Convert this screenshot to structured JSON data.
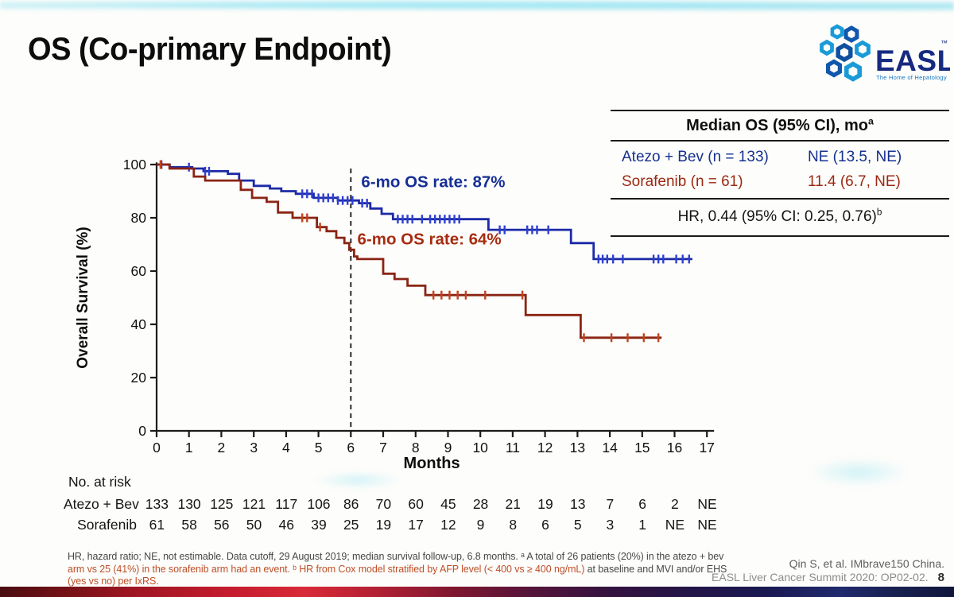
{
  "slide": {
    "title": "OS (Co-primary Endpoint)",
    "page_number": "8",
    "citation_line1": "Qin S, et al. IMbrave150 China.",
    "citation_line2": "EASL Liver Cancer Summit 2020: OP02-02."
  },
  "logo": {
    "text": "EASL",
    "tm": "™",
    "tagline": "The Home of Hepatology"
  },
  "summary_table": {
    "header": "Median OS (95% CI), mo",
    "header_sup": "a",
    "rows": [
      {
        "label": "Atezo + Bev (n = 133)",
        "value": "NE (13.5, NE)",
        "color_key": "atezo"
      },
      {
        "label": "Sorafenib (n = 61)",
        "value": "11.4 (6.7, NE)",
        "color_key": "sorafenib"
      }
    ],
    "hr_text": "HR, 0.44 (95% CI: 0.25, 0.76)",
    "hr_sup": "b"
  },
  "chart_data": {
    "type": "line",
    "subtype": "kaplan-meier-step",
    "title": "",
    "xlabel": "Months",
    "ylabel": "Overall Survival (%)",
    "xlim": [
      0,
      17
    ],
    "ylim": [
      0,
      100
    ],
    "xticks": [
      0,
      1,
      2,
      3,
      4,
      5,
      6,
      7,
      8,
      9,
      10,
      11,
      12,
      13,
      14,
      15,
      16,
      17
    ],
    "yticks": [
      0,
      20,
      40,
      60,
      80,
      100
    ],
    "grid": false,
    "legend_position": "none",
    "reference_line_x": 6,
    "annotations": [
      {
        "text": "6-mo OS rate: 87%",
        "x": 6.32,
        "y": 91.5,
        "color": "#152f96"
      },
      {
        "text": "6-mo OS rate: 64%",
        "x": 6.2,
        "y": 70.0,
        "color": "#a62c10"
      }
    ],
    "series": [
      {
        "name": "Atezo + Bev",
        "color": "#1c2aa6",
        "tick_color": "#2e3fd2",
        "six_month_os_rate_pct": 87,
        "median_os": "NE (13.5, NE)",
        "steps": [
          [
            0,
            100
          ],
          [
            0.4,
            99
          ],
          [
            1.1,
            98.5
          ],
          [
            1.45,
            97.5
          ],
          [
            2.2,
            96.5
          ],
          [
            2.55,
            94
          ],
          [
            3.0,
            92
          ],
          [
            3.5,
            91
          ],
          [
            3.85,
            90
          ],
          [
            4.3,
            89
          ],
          [
            4.85,
            87.5
          ],
          [
            5.6,
            86.5
          ],
          [
            6.25,
            85.5
          ],
          [
            6.6,
            83.5
          ],
          [
            6.95,
            81.5
          ],
          [
            7.3,
            79.5
          ],
          [
            10.25,
            75.5
          ],
          [
            12.8,
            70.5
          ],
          [
            13.5,
            64.5
          ],
          [
            16.55,
            64.5
          ]
        ],
        "censors": [
          0.15,
          1.0,
          1.5,
          1.62,
          4.5,
          4.65,
          4.8,
          5.0,
          5.15,
          5.3,
          5.45,
          5.6,
          5.75,
          5.9,
          6.05,
          6.35,
          6.5,
          7.45,
          7.6,
          7.75,
          7.9,
          8.2,
          8.45,
          8.6,
          8.75,
          8.9,
          9.05,
          9.2,
          9.35,
          10.6,
          10.75,
          11.45,
          11.6,
          11.75,
          12.1,
          13.65,
          13.78,
          13.92,
          14.1,
          14.4,
          15.35,
          15.5,
          15.65,
          16.05,
          16.25,
          16.45
        ]
      },
      {
        "name": "Sorafenib",
        "color": "#8a2414",
        "tick_color": "#c1441d",
        "six_month_os_rate_pct": 64,
        "median_os": "11.4 (6.7, NE)",
        "steps": [
          [
            0,
            100
          ],
          [
            0.4,
            98.5
          ],
          [
            1.15,
            95.5
          ],
          [
            1.5,
            94
          ],
          [
            2.6,
            90.5
          ],
          [
            2.95,
            87.5
          ],
          [
            3.4,
            86
          ],
          [
            3.75,
            82
          ],
          [
            4.2,
            80
          ],
          [
            4.95,
            76.5
          ],
          [
            5.25,
            75
          ],
          [
            5.55,
            72.5
          ],
          [
            5.8,
            70.5
          ],
          [
            5.95,
            68
          ],
          [
            6.1,
            65.5
          ],
          [
            6.2,
            64.5
          ],
          [
            7.0,
            59
          ],
          [
            7.35,
            57
          ],
          [
            7.75,
            54.5
          ],
          [
            8.3,
            51
          ],
          [
            11.4,
            43.5
          ],
          [
            13.1,
            35
          ],
          [
            15.6,
            35
          ]
        ],
        "censors": [
          0.12,
          4.5,
          4.65,
          5.05,
          8.55,
          8.8,
          9.05,
          9.3,
          9.55,
          10.15,
          11.3,
          13.2,
          14.05,
          14.55,
          15.05,
          15.5
        ]
      }
    ]
  },
  "risk_table": {
    "title": "No. at risk",
    "rows": [
      {
        "label": "Atezo + Bev",
        "values": [
          "133",
          "130",
          "125",
          "121",
          "117",
          "106",
          "86",
          "70",
          "60",
          "45",
          "28",
          "21",
          "19",
          "13",
          "7",
          "6",
          "2",
          "NE"
        ]
      },
      {
        "label": "Sorafenib",
        "values": [
          "61",
          "58",
          "56",
          "50",
          "46",
          "39",
          "25",
          "19",
          "17",
          "12",
          "9",
          "8",
          "6",
          "5",
          "3",
          "1",
          "NE",
          "NE"
        ]
      }
    ]
  },
  "footnotes": {
    "lines": [
      {
        "segments": [
          {
            "text": "HR, hazard ratio; NE, not estimable. Data cutoff, 29 August 2019; median survival follow-up, 6.8 months. ᵃ A total of 26 patients (20%) in the atezo + bev",
            "tone": "plain"
          }
        ]
      },
      {
        "segments": [
          {
            "text": "arm vs 25 (41%) in the sorafenib arm had an event. ᵇ HR from Cox model stratified by AFP level (< 400 vs ≥ 400 ng/mL) ",
            "tone": "warm"
          },
          {
            "text": "at baseline and MVI and/or EHS",
            "tone": "plain"
          }
        ]
      },
      {
        "segments": [
          {
            "text": "(yes vs no) per IxRS.",
            "tone": "warm"
          }
        ]
      }
    ]
  },
  "colors": {
    "atezo_blue": "#1c2aa6",
    "sorafenib_red": "#8a2414",
    "atezo_text": "#15308f",
    "sorafenib_text": "#9c2812",
    "logo_navy": "#162a80",
    "logo_light_blue": "#1a9bd8",
    "logo_mid_blue": "#1157ac"
  }
}
